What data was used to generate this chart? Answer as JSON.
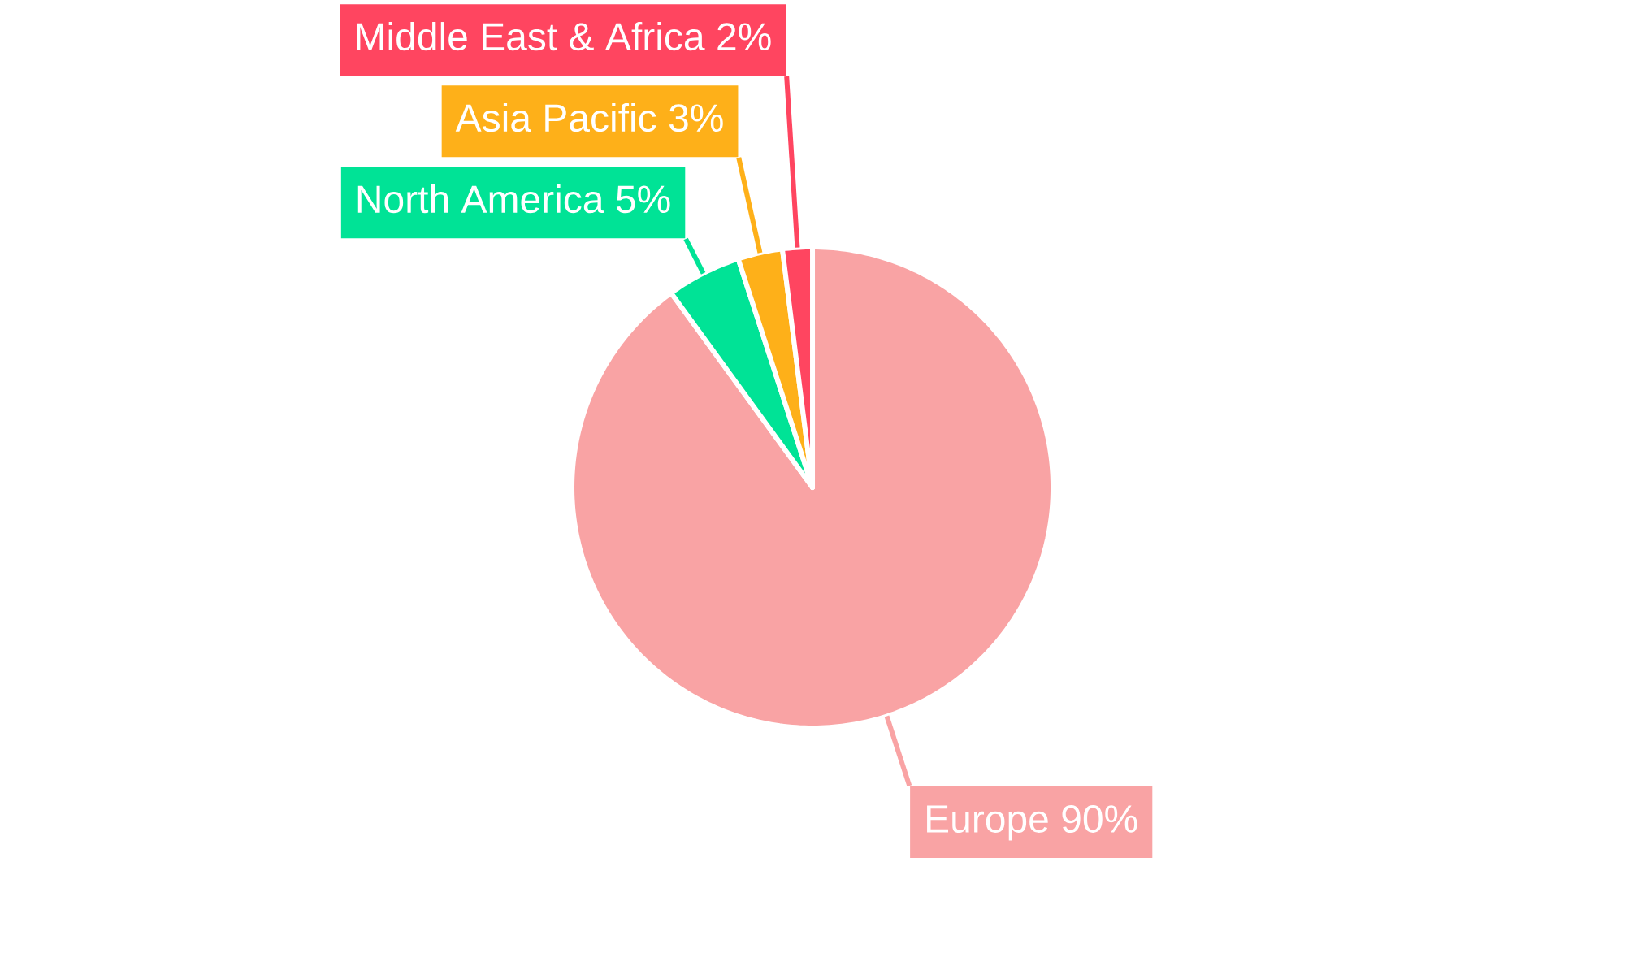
{
  "chart_data": {
    "type": "pie",
    "categories": [
      "Europe",
      "North America",
      "Asia Pacific",
      "Middle East & Africa"
    ],
    "values": [
      90,
      5,
      3,
      2
    ],
    "colors": [
      "#f9a3a4",
      "#00e396",
      "#feb019",
      "#ff4560"
    ],
    "value_labels": [
      "90%",
      "5%",
      "3%",
      "2%"
    ]
  }
}
